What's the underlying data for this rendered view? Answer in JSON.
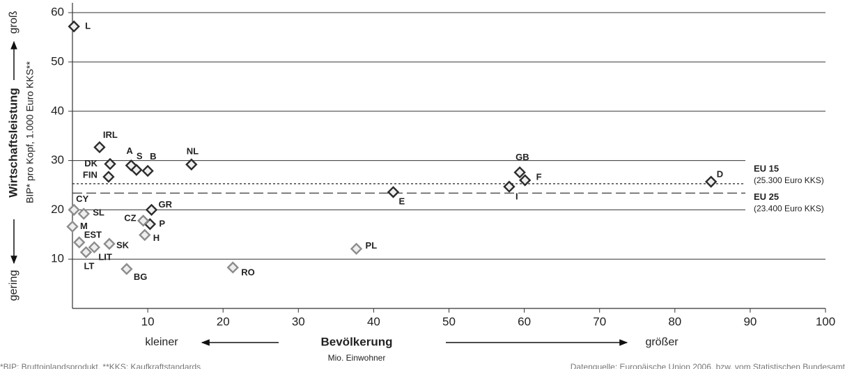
{
  "chart_data": {
    "type": "scatter",
    "x_label": "Bevölkerung",
    "x_label_left": "kleiner",
    "x_label_right": "größer",
    "x_unit": "Mio. Einwohner",
    "y_label": "Wirtschaftsleistung",
    "y_label_low": "gering",
    "y_label_high": "groß",
    "y_unit": "BIP* pro Kopf, 1.000 Euro KKS**",
    "xlim": [
      0,
      100
    ],
    "xticks": [
      10,
      20,
      30,
      40,
      50,
      60,
      70,
      80,
      90,
      100
    ],
    "ylim": [
      0,
      62
    ],
    "yticks": [
      10,
      20,
      30,
      40,
      50,
      60
    ],
    "grid": true,
    "series": [
      {
        "color": "#2b2b2b",
        "labels": [
          "L",
          "IRL",
          "DK",
          "FIN",
          "A",
          "S",
          "B",
          "NL",
          "GB",
          "F",
          "I",
          "D",
          "E",
          "GR",
          "P"
        ],
        "x": [
          0.2,
          3.6,
          5.0,
          4.8,
          7.8,
          8.5,
          10.0,
          15.8,
          59.4,
          60.1,
          58.0,
          84.8,
          42.6,
          10.5,
          10.3
        ],
        "values": [
          57.2,
          32.7,
          29.3,
          26.7,
          29.0,
          28.1,
          27.9,
          29.2,
          27.6,
          26.0,
          24.7,
          25.7,
          23.6,
          20.0,
          17.1
        ]
      },
      {
        "color": "#8c8c8c",
        "labels": [
          "CY",
          "SL",
          "M",
          "EST",
          "LT",
          "LIT",
          "SK",
          "CZ",
          "H",
          "BG",
          "RO",
          "PL"
        ],
        "x": [
          0.2,
          1.5,
          0.0,
          0.9,
          1.8,
          2.9,
          4.9,
          9.4,
          9.6,
          7.2,
          21.3,
          37.7
        ],
        "values": [
          20.0,
          19.2,
          16.6,
          13.4,
          11.4,
          12.4,
          13.1,
          17.8,
          14.9,
          8.0,
          8.3,
          12.1
        ]
      }
    ],
    "reference_lines": [
      {
        "value": 25.3,
        "label": "EU 15",
        "sublabel": "(25.300 Euro KKS)",
        "style": "dotted"
      },
      {
        "value": 23.4,
        "label": "EU 25",
        "sublabel": "(23.400 Euro KKS)",
        "style": "dashed"
      }
    ],
    "footnote": "*BIP: Bruttoinlandsprodukt, **KKS: Kaufkraftstandards",
    "source": "Datenquelle: Europäische Union 2006, bzw. vom Statistischen Bundesamt"
  }
}
